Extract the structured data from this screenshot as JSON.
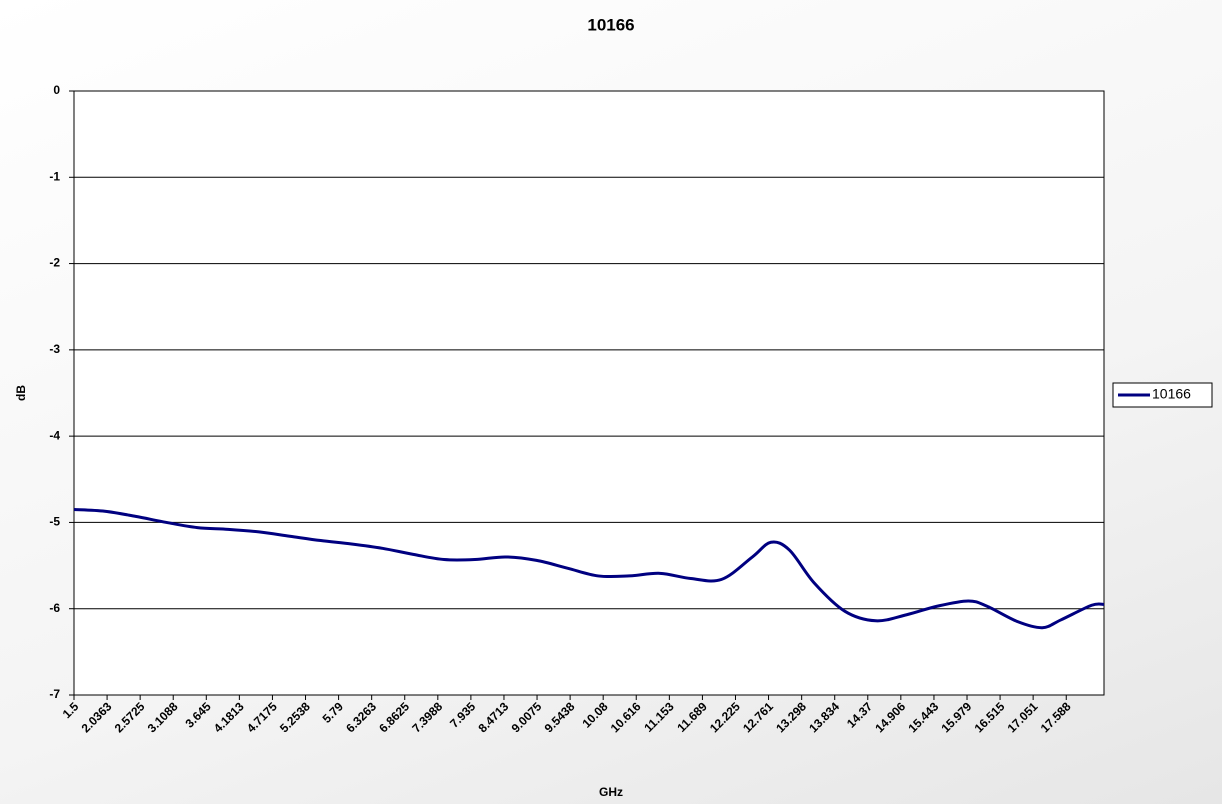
{
  "chart_data": {
    "type": "line",
    "title": "10166",
    "x_label": "GHz",
    "y_label": "dB",
    "x": [
      1.5,
      2.0,
      2.5,
      3.0,
      3.5,
      4.0,
      4.5,
      5.0,
      5.5,
      6.0,
      6.5,
      7.0,
      7.5,
      8.0,
      8.5,
      9.0,
      9.5,
      10.0,
      10.5,
      11.0,
      11.5,
      12.0,
      12.5,
      12.8,
      13.1,
      13.5,
      14.0,
      14.5,
      15.0,
      15.5,
      16.0,
      16.3,
      16.8,
      17.2,
      17.5,
      18.0,
      18.2
    ],
    "series": [
      {
        "name": "10166",
        "color": "#000080",
        "values": [
          -4.85,
          -4.87,
          -4.93,
          -5.0,
          -5.06,
          -5.08,
          -5.11,
          -5.16,
          -5.21,
          -5.25,
          -5.3,
          -5.37,
          -5.43,
          -5.43,
          -5.4,
          -5.44,
          -5.53,
          -5.62,
          -5.62,
          -5.59,
          -5.65,
          -5.66,
          -5.4,
          -5.23,
          -5.32,
          -5.7,
          -6.03,
          -6.14,
          -6.07,
          -5.97,
          -5.91,
          -5.97,
          -6.15,
          -6.22,
          -6.13,
          -5.96,
          -5.95
        ]
      }
    ],
    "xlim": [
      1.5,
      18.2
    ],
    "xticks": [
      1.5,
      2.0363,
      2.5725,
      3.1088,
      3.645,
      4.1813,
      4.7175,
      5.2538,
      5.79,
      6.3263,
      6.8625,
      7.3988,
      7.935,
      8.4713,
      9.0075,
      9.5438,
      10.08,
      10.616,
      11.153,
      11.689,
      12.225,
      12.761,
      13.298,
      13.834,
      14.37,
      14.906,
      15.443,
      15.979,
      16.515,
      17.051,
      17.588
    ],
    "ylim": [
      -7,
      0
    ],
    "yticks": [
      0,
      -1,
      -2,
      -3,
      -4,
      -5,
      -6,
      -7
    ],
    "grid": true,
    "legend": "right"
  }
}
